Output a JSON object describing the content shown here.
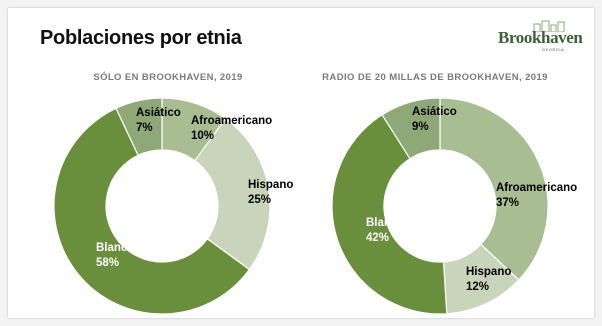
{
  "header": {
    "title": "Poblaciones por etnia",
    "logo_text": "Brookhaven",
    "logo_subtext": "GEORGIA"
  },
  "chart_data": [
    {
      "type": "pie",
      "title": "SÓLO EN BROOKHAVEN, 2019",
      "categories": [
        "Afroamericano",
        "Hispano",
        "Blanco",
        "Asiático"
      ],
      "values": [
        10,
        25,
        58,
        7
      ],
      "labels": [
        "10%",
        "25%",
        "58%",
        "7%"
      ],
      "colors": [
        "#a9bd93",
        "#c9d5bb",
        "#6a8f3c",
        "#8fa878"
      ],
      "label_colors": [
        "#000000",
        "#000000",
        "#ffffff",
        "#000000"
      ],
      "donut": true
    },
    {
      "type": "pie",
      "title": "RADIO DE 20 MILLAS DE BROOKHAVEN, 2019",
      "categories": [
        "Afroamericano",
        "Hispano",
        "Blanco",
        "Asiático"
      ],
      "values": [
        37,
        12,
        42,
        9
      ],
      "labels": [
        "37%",
        "12%",
        "42%",
        "9%"
      ],
      "colors": [
        "#a9bd93",
        "#c9d5bb",
        "#6a8f3c",
        "#8fa878"
      ],
      "label_colors": [
        "#000000",
        "#000000",
        "#ffffff",
        "#000000"
      ],
      "donut": true
    }
  ]
}
